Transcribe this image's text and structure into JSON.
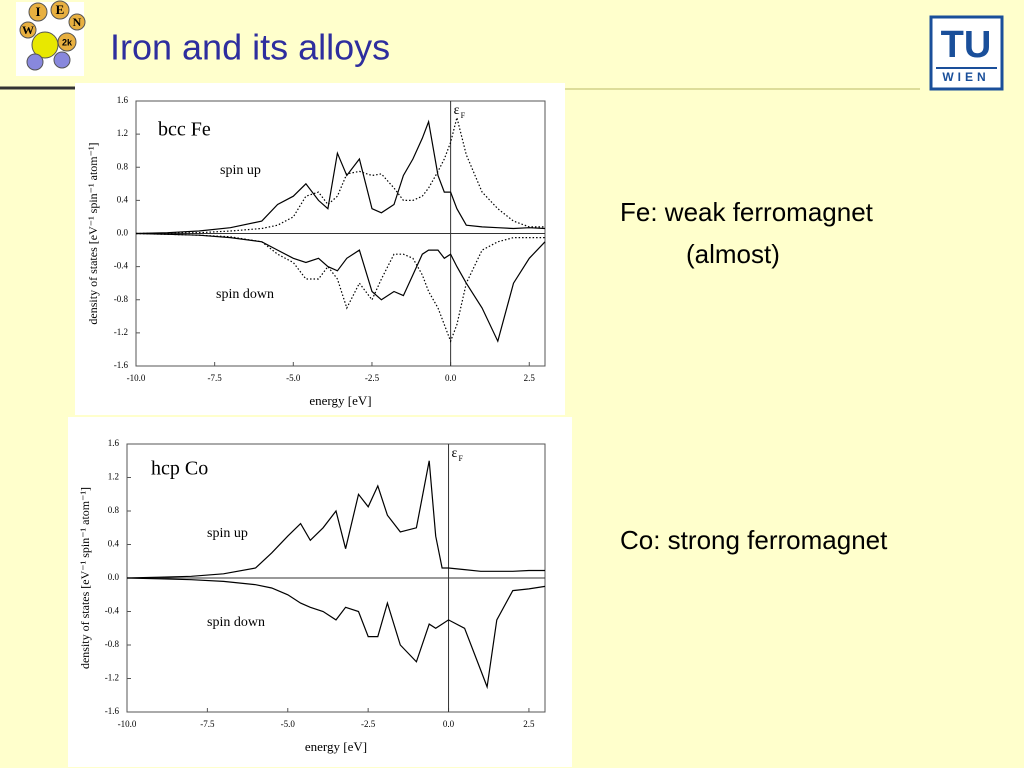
{
  "slide": {
    "title": "Iron and its alloys",
    "logo_left": [
      "I",
      "E",
      "N",
      "W",
      "2k"
    ],
    "logo_right": [
      "TU",
      "WIEN"
    ],
    "text_fe": [
      "Fe: weak ferromagnet",
      "(almost)"
    ],
    "text_co": "Co: strong ferromagnet"
  },
  "chart_data": [
    {
      "type": "line",
      "label": "bcc Fe",
      "up_label": "spin up",
      "down_label": "spin down",
      "fermi_label": "ε",
      "fermi_subscript": "F",
      "vline": 0,
      "ylabel": "density of states [eV⁻¹ spin⁻¹ atom⁻¹]",
      "xlabel": "energy [eV]",
      "xlim": [
        -10,
        3
      ],
      "ylim": [
        -1.6,
        1.6
      ],
      "xticks": [
        {
          "value": -10,
          "label": "-10.0"
        },
        -7.5,
        {
          "value": -5,
          "label": "-5.0"
        },
        -2.5,
        {
          "value": 0,
          "label": "0.0"
        },
        2.5
      ],
      "yticks": [
        -1.6,
        -1.2,
        -0.8,
        -0.4,
        {
          "value": 0,
          "label": "0.0"
        },
        0.4,
        0.8,
        1.2,
        1.6
      ],
      "x": [
        -10,
        -9,
        -8,
        -7,
        -6,
        -5.5,
        -5,
        -4.6,
        -4.2,
        -3.9,
        -3.6,
        -3.3,
        -2.9,
        -2.5,
        -2.2,
        -1.8,
        -1.5,
        -1.2,
        -0.9,
        -0.7,
        -0.4,
        -0.2,
        0,
        0.2,
        0.5,
        1,
        1.5,
        2,
        2.5,
        3
      ],
      "series": [
        {
          "color": "#000000",
          "dash": false,
          "values": [
            0,
            0.01,
            0.03,
            0.07,
            0.15,
            0.35,
            0.45,
            0.6,
            0.4,
            0.3,
            0.97,
            0.7,
            0.9,
            0.3,
            0.25,
            0.35,
            0.7,
            0.9,
            1.15,
            1.35,
            0.7,
            0.5,
            0.5,
            0.3,
            0.1,
            0.08,
            0.07,
            0.06,
            0.07,
            0.06
          ]
        },
        {
          "color": "#000000",
          "dash": true,
          "values": [
            0,
            0.005,
            0.01,
            0.03,
            0.06,
            0.1,
            0.2,
            0.45,
            0.5,
            0.35,
            0.45,
            0.72,
            0.75,
            0.7,
            0.72,
            0.55,
            0.4,
            0.4,
            0.45,
            0.55,
            0.75,
            0.9,
            1.1,
            1.4,
            0.95,
            0.5,
            0.3,
            0.15,
            0.08,
            0.08
          ]
        },
        {
          "color": "#000000",
          "dash": false,
          "values": [
            0,
            -0.01,
            -0.02,
            -0.05,
            -0.1,
            -0.2,
            -0.3,
            -0.35,
            -0.3,
            -0.4,
            -0.45,
            -0.3,
            -0.2,
            -0.7,
            -0.8,
            -0.7,
            -0.75,
            -0.5,
            -0.25,
            -0.2,
            -0.2,
            -0.3,
            -0.25,
            -0.4,
            -0.6,
            -0.9,
            -1.3,
            -0.6,
            -0.3,
            -0.1
          ]
        },
        {
          "color": "#000000",
          "dash": true,
          "values": [
            0,
            -0.01,
            -0.02,
            -0.04,
            -0.1,
            -0.25,
            -0.35,
            -0.55,
            -0.55,
            -0.4,
            -0.55,
            -0.9,
            -0.6,
            -0.8,
            -0.55,
            -0.25,
            -0.25,
            -0.3,
            -0.5,
            -0.7,
            -0.9,
            -1.1,
            -1.3,
            -1.1,
            -0.6,
            -0.2,
            -0.1,
            -0.05,
            -0.05,
            -0.05
          ]
        }
      ]
    },
    {
      "type": "line",
      "label": "hcp Co",
      "up_label": "spin up",
      "down_label": "spin down",
      "fermi_label": "ε",
      "fermi_subscript": "F",
      "vline": 0,
      "ylabel": "density of states [eV⁻¹ spin⁻¹ atom⁻¹]",
      "xlabel": "energy [eV]",
      "xlim": [
        -10,
        3
      ],
      "ylim": [
        -1.6,
        1.6
      ],
      "xticks": [
        {
          "value": -10,
          "label": "-10.0"
        },
        -7.5,
        {
          "value": -5,
          "label": "-5.0"
        },
        -2.5,
        {
          "value": 0,
          "label": "0.0"
        },
        2.5
      ],
      "yticks": [
        -1.6,
        -1.2,
        -0.8,
        -0.4,
        {
          "value": 0,
          "label": "0.0"
        },
        0.4,
        0.8,
        1.2,
        1.6
      ],
      "x": [
        -10,
        -9,
        -8,
        -7,
        -6,
        -5.5,
        -5,
        -4.6,
        -4.3,
        -3.9,
        -3.5,
        -3.2,
        -2.8,
        -2.5,
        -2.2,
        -1.9,
        -1.5,
        -1,
        -0.6,
        -0.4,
        -0.2,
        0,
        0.5,
        1,
        1.2,
        1.5,
        2,
        2.5,
        3
      ],
      "series": [
        {
          "color": "#000000",
          "dash": false,
          "values": [
            0,
            0.01,
            0.02,
            0.05,
            0.12,
            0.3,
            0.5,
            0.65,
            0.45,
            0.6,
            0.8,
            0.35,
            1.0,
            0.85,
            1.1,
            0.75,
            0.55,
            0.6,
            1.4,
            0.5,
            0.12,
            0.12,
            0.1,
            0.08,
            0.08,
            0.08,
            0.08,
            0.09,
            0.09
          ]
        },
        {
          "color": "#000000",
          "dash": false,
          "values": [
            0,
            -0.01,
            -0.02,
            -0.04,
            -0.08,
            -0.12,
            -0.2,
            -0.3,
            -0.35,
            -0.4,
            -0.5,
            -0.35,
            -0.4,
            -0.7,
            -0.7,
            -0.3,
            -0.8,
            -1.0,
            -0.55,
            -0.6,
            -0.55,
            -0.5,
            -0.6,
            -1.1,
            -1.3,
            -0.5,
            -0.15,
            -0.13,
            -0.1
          ]
        }
      ]
    }
  ]
}
